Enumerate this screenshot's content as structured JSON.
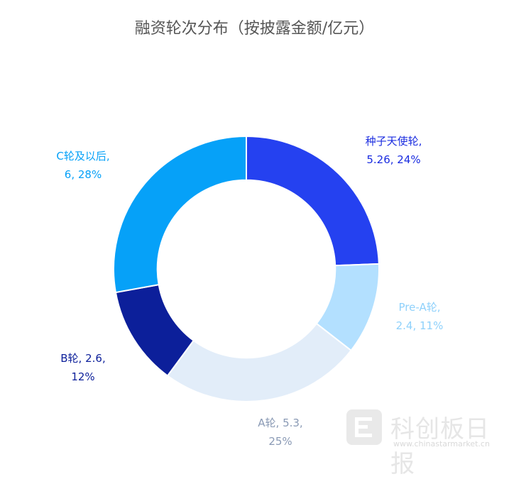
{
  "chart_data": {
    "type": "pie",
    "title": "融资轮次分布（按披露金额/亿元）",
    "slices": [
      {
        "name": "种子天使轮",
        "value": 5.26,
        "percent": "24%",
        "label_line1": "种子天使轮,",
        "label_line2": "5.26, 24%",
        "color": "#2541f0",
        "label_color": "#1a2ce0"
      },
      {
        "name": "Pre-A轮",
        "value": 2.4,
        "percent": "11%",
        "label_line1": "Pre-A轮,",
        "label_line2": "2.4, 11%",
        "color": "#b3e0ff",
        "label_color": "#8fd1fb"
      },
      {
        "name": "A轮",
        "value": 5.3,
        "percent": "25%",
        "label_line1": "A轮, 5.3,",
        "label_line2": "25%",
        "color": "#e2edf9",
        "label_color": "#8a9ab5"
      },
      {
        "name": "B轮",
        "value": 2.6,
        "percent": "12%",
        "label_line1": "B轮, 2.6,",
        "label_line2": "12%",
        "color": "#0c1f9a",
        "label_color": "#0c1f9a"
      },
      {
        "name": "C轮及以后",
        "value": 6,
        "percent": "28%",
        "label_line1": "C轮及以后,",
        "label_line2": "6, 28%",
        "color": "#06a1f8",
        "label_color": "#06a1f8"
      }
    ],
    "legend": "none",
    "hole": 0.67
  },
  "watermark": {
    "name": "科创板日报",
    "url": "www.chinastarmarket.cn"
  }
}
